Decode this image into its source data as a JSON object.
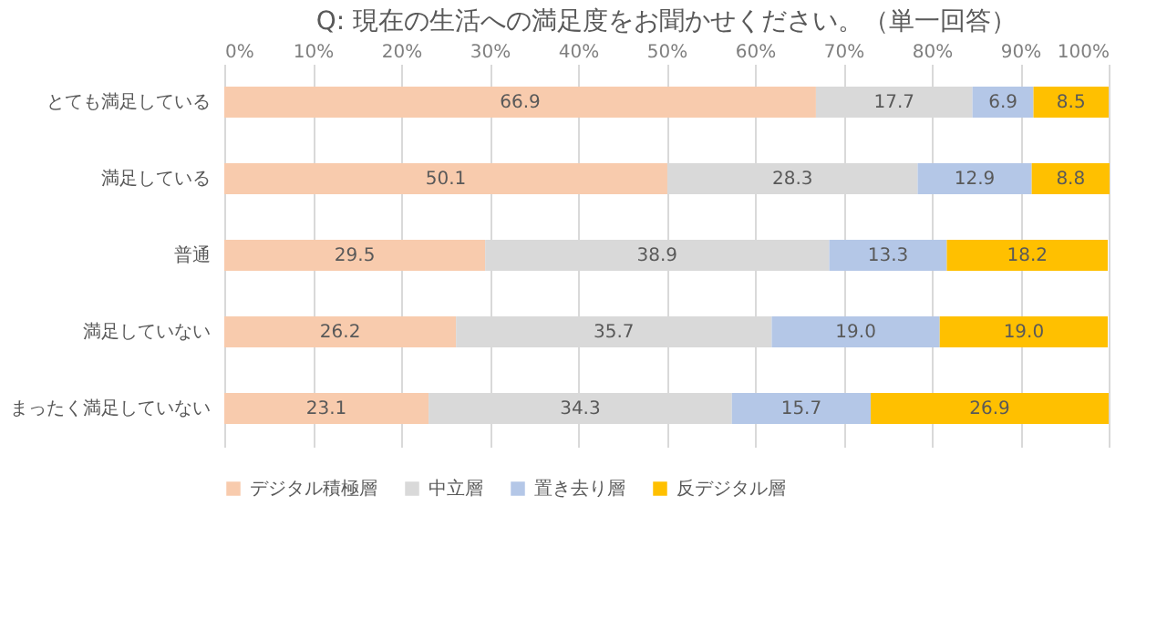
{
  "chart_data": {
    "type": "bar",
    "orientation": "horizontal",
    "stacked": true,
    "title": "Q: 現在の生活への満足度をお聞かせください。（単一回答）",
    "categories": [
      "とても満足している",
      "満足している",
      "普通",
      "満足していない",
      "まったく満足していない"
    ],
    "series": [
      {
        "name": "デジタル積極層",
        "color": "#f8cbad",
        "values": [
          66.9,
          50.1,
          29.5,
          26.2,
          23.1
        ],
        "value_labels": [
          "66.9",
          "50.1",
          "29.5",
          "26.2",
          "23.1"
        ]
      },
      {
        "name": "中立層",
        "color": "#d9d9d9",
        "values": [
          17.7,
          28.3,
          38.9,
          35.7,
          34.3
        ],
        "value_labels": [
          "17.7",
          "28.3",
          "38.9",
          "35.7",
          "34.3"
        ]
      },
      {
        "name": "置き去り層",
        "color": "#b4c7e7",
        "values": [
          6.9,
          12.9,
          13.3,
          19.0,
          15.7
        ],
        "value_labels": [
          "6.9",
          "12.9",
          "13.3",
          "19.0",
          "15.7"
        ]
      },
      {
        "name": "反デジタル層",
        "color": "#ffc000",
        "values": [
          8.5,
          8.8,
          18.2,
          19.0,
          26.9
        ],
        "value_labels": [
          "8.5",
          "8.8",
          "18.2",
          "19.0",
          "26.9"
        ]
      }
    ],
    "xlim": [
      0,
      100
    ],
    "xticks": [
      {
        "value": 0,
        "label": "0%"
      },
      {
        "value": 10,
        "label": "10%"
      },
      {
        "value": 20,
        "label": "20%"
      },
      {
        "value": 30,
        "label": "30%"
      },
      {
        "value": 40,
        "label": "40%"
      },
      {
        "value": 50,
        "label": "50%"
      },
      {
        "value": 60,
        "label": "60%"
      },
      {
        "value": 70,
        "label": "70%"
      },
      {
        "value": 80,
        "label": "80%"
      },
      {
        "value": 90,
        "label": "90%"
      },
      {
        "value": 100,
        "label": "100%"
      }
    ],
    "grid": "x",
    "legend": "bottom"
  }
}
